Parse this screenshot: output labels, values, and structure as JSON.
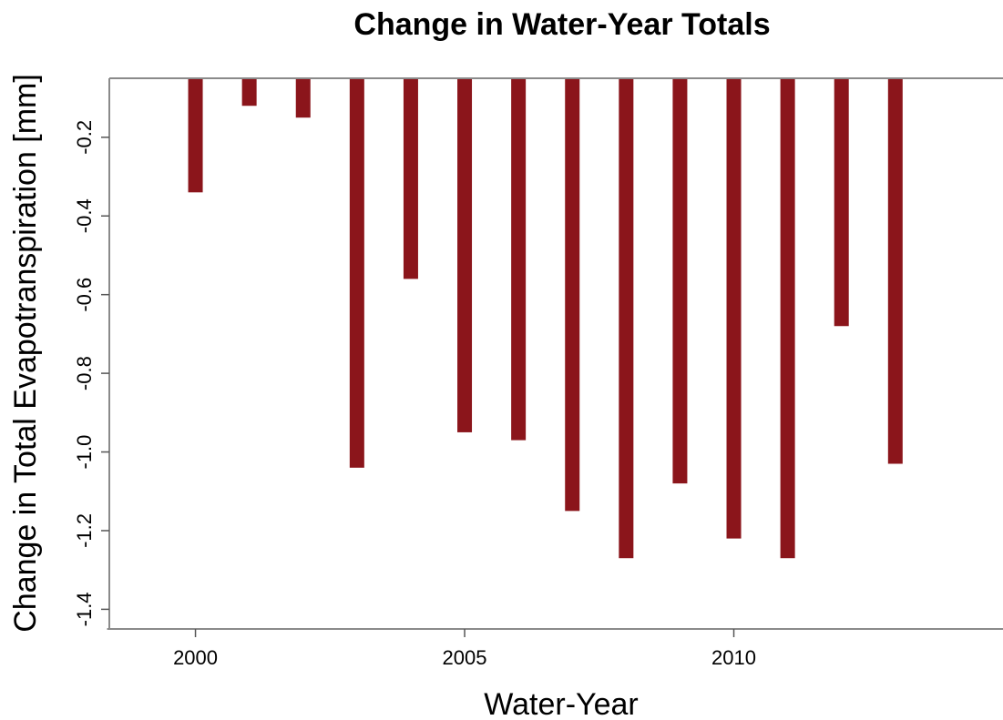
{
  "chart_data": {
    "type": "bar",
    "title": "Change in Water-Year Totals",
    "xlabel": "Water-Year",
    "ylabel": "Change in Total Evapotranspiration [mm]",
    "x": [
      2000,
      2001,
      2002,
      2003,
      2004,
      2005,
      2006,
      2007,
      2008,
      2009,
      2010,
      2011,
      2012,
      2013
    ],
    "values": [
      -0.34,
      -0.12,
      -0.15,
      -1.04,
      -0.56,
      -0.95,
      -0.97,
      -1.15,
      -1.27,
      -1.08,
      -1.22,
      -1.27,
      -0.68,
      -1.03
    ],
    "xticks": [
      "2000",
      "2005",
      "2010"
    ],
    "yticks": [
      "-0.2",
      "-0.4",
      "-0.6",
      "-0.8",
      "-1.0",
      "-1.2",
      "-1.4"
    ],
    "xlim": [
      1998.4,
      2015
    ],
    "ylim": [
      -1.45,
      -0.05
    ],
    "bar_color": "#8b151b",
    "grid": false
  }
}
